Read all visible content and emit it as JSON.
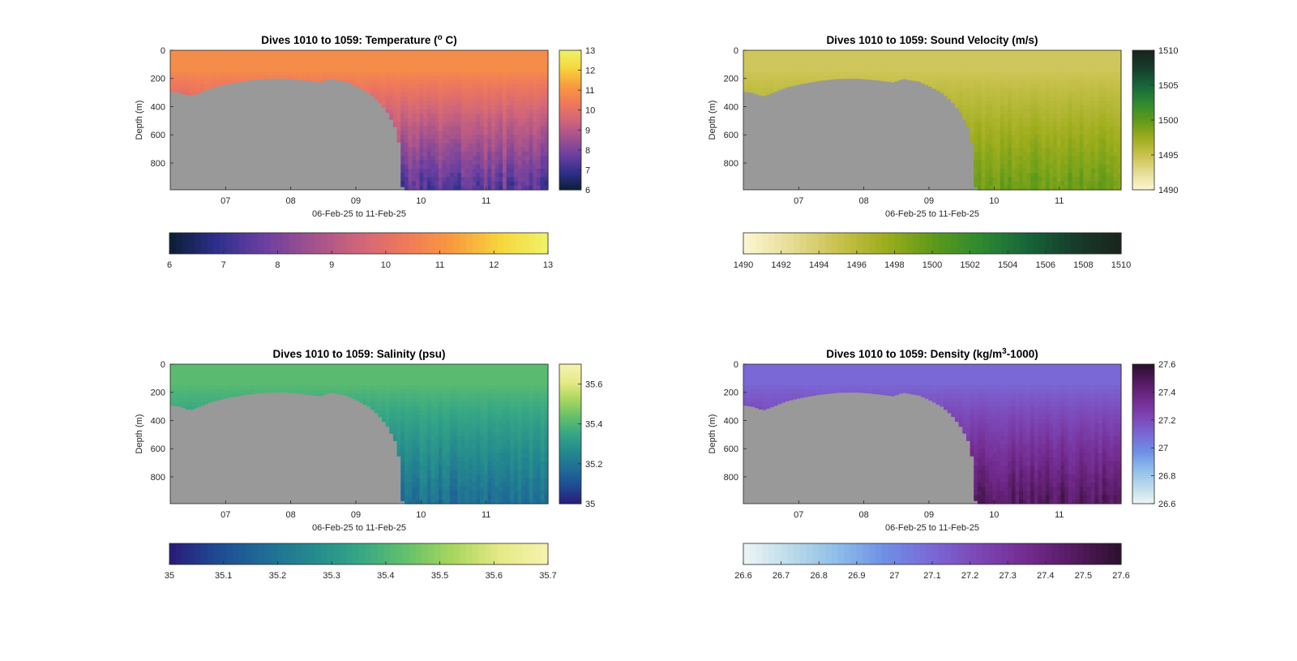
{
  "chart_data": [
    {
      "type": "heatmap",
      "variable": "temperature",
      "title": "Dives 1010 to 1059: Temperature (",
      "title_sup": "o",
      "title_end": " C)",
      "xlabel": "06-Feb-25 to 11-Feb-25",
      "ylabel": "Depth (m)",
      "xticks": [
        "07",
        "08",
        "09",
        "10",
        "11"
      ],
      "xlim": [
        6.15,
        11.95
      ],
      "yticks": [
        "0",
        "200",
        "400",
        "600",
        "800"
      ],
      "ylim": [
        0,
        990
      ],
      "colorbar": {
        "min": 6,
        "max": 13,
        "ticks": [
          "6",
          "7",
          "8",
          "9",
          "10",
          "11",
          "12",
          "13"
        ],
        "colors": [
          "#0b1d33",
          "#2e2f8c",
          "#6b3fa0",
          "#a0518f",
          "#d0657a",
          "#f0795a",
          "#f99b3f",
          "#f6d63b",
          "#eef36a"
        ]
      },
      "horizontal_colorbar": {
        "ticks": [
          "6",
          "7",
          "8",
          "9",
          "10",
          "11",
          "12",
          "13"
        ]
      },
      "surface_value": 10.9,
      "deep_value": 7.6,
      "no_data_color": "#999999"
    },
    {
      "type": "heatmap",
      "variable": "sound_velocity",
      "title": "Dives 1010 to 1059: Sound Velocity (m/s)",
      "xlabel": "06-Feb-25 to 11-Feb-25",
      "ylabel": "Depth (m)",
      "xticks": [
        "07",
        "08",
        "09",
        "10",
        "11"
      ],
      "xlim": [
        6.15,
        11.95
      ],
      "yticks": [
        "0",
        "200",
        "400",
        "600",
        "800"
      ],
      "ylim": [
        0,
        990
      ],
      "colorbar": {
        "min": 1490,
        "max": 1510,
        "ticks": [
          "1490",
          "1495",
          "1500",
          "1505",
          "1510"
        ],
        "colors": [
          "#fdf7d3",
          "#e6dd96",
          "#c9c24e",
          "#9ead1c",
          "#5f9a1a",
          "#2f8a30",
          "#17663a",
          "#163d2c",
          "#1a241b"
        ]
      },
      "horizontal_colorbar": {
        "ticks": [
          "1490",
          "1492",
          "1494",
          "1496",
          "1498",
          "1500",
          "1502",
          "1504",
          "1506",
          "1508",
          "1510"
        ]
      },
      "surface_value": 1494.5,
      "deep_value": 1499.5,
      "no_data_color": "#999999"
    },
    {
      "type": "heatmap",
      "variable": "salinity",
      "title": "Dives 1010 to 1059: Salinity (psu)",
      "xlabel": "06-Feb-25 to 11-Feb-25",
      "ylabel": "Depth (m)",
      "xticks": [
        "07",
        "08",
        "09",
        "10",
        "11"
      ],
      "xlim": [
        6.15,
        11.95
      ],
      "yticks": [
        "0",
        "200",
        "400",
        "600",
        "800"
      ],
      "ylim": [
        0,
        990
      ],
      "colorbar": {
        "min": 35,
        "max": 35.7,
        "ticks": [
          "35",
          "35.2",
          "35.4",
          "35.6"
        ],
        "colors": [
          "#2a1a78",
          "#1f4a93",
          "#1f6c96",
          "#24898e",
          "#35a686",
          "#63c06b",
          "#a9d65e",
          "#e6ea86",
          "#f6f3b0"
        ]
      },
      "horizontal_colorbar": {
        "ticks": [
          "35",
          "35.1",
          "35.2",
          "35.3",
          "35.4",
          "35.5",
          "35.6",
          "35.7"
        ]
      },
      "surface_value": 35.42,
      "deep_value": 35.19,
      "no_data_color": "#999999"
    },
    {
      "type": "heatmap",
      "variable": "density",
      "title": "Dives 1010 to 1059: Density (kg/m",
      "title_sup": "3",
      "title_end": "-1000)",
      "xlabel": "06-Feb-25 to 11-Feb-25",
      "ylabel": "Depth (m)",
      "xticks": [
        "07",
        "08",
        "09",
        "10",
        "11"
      ],
      "xlim": [
        6.15,
        11.95
      ],
      "yticks": [
        "0",
        "200",
        "400",
        "600",
        "800"
      ],
      "ylim": [
        0,
        990
      ],
      "colorbar": {
        "min": 26.6,
        "max": 27.6,
        "ticks": [
          "26.6",
          "26.8",
          "27",
          "27.2",
          "27.4",
          "27.6"
        ],
        "colors": [
          "#edf6f6",
          "#bcdbea",
          "#8dbde9",
          "#6f8fe6",
          "#7a68d6",
          "#7d46b5",
          "#732b8f",
          "#551a60",
          "#2c0f2e"
        ]
      },
      "horizontal_colorbar": {
        "ticks": [
          "26.6",
          "26.7",
          "26.8",
          "26.9",
          "27",
          "27.1",
          "27.2",
          "27.3",
          "27.4",
          "27.5",
          "27.6"
        ]
      },
      "surface_value": 27.1,
      "deep_value": 27.47,
      "no_data_color": "#999999"
    }
  ]
}
